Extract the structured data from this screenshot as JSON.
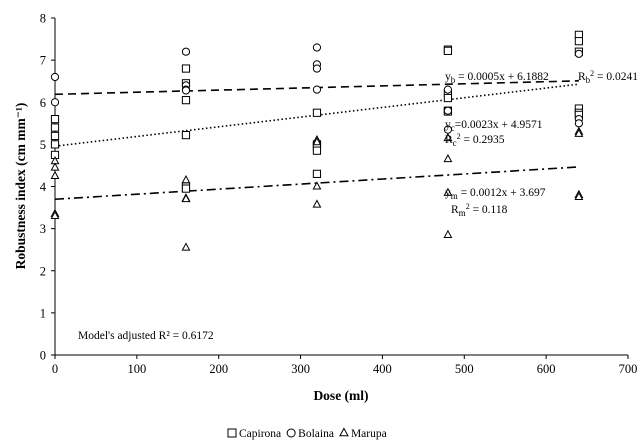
{
  "chart_data": {
    "type": "scatter",
    "xlabel": "Dose (ml)",
    "ylabel": "Robustness index (cm mm⁻¹)",
    "xlim": [
      0,
      700
    ],
    "ylim": [
      0,
      8
    ],
    "xticks": [
      0,
      100,
      200,
      300,
      400,
      500,
      600,
      700
    ],
    "yticks": [
      0,
      1,
      2,
      3,
      4,
      5,
      6,
      7,
      8
    ],
    "grid": false,
    "legend_position": "bottom-center",
    "series": [
      {
        "name": "Capirona",
        "marker": "square",
        "points": [
          [
            0,
            5.6
          ],
          [
            0,
            5.4
          ],
          [
            0,
            5.2
          ],
          [
            0,
            5.0
          ],
          [
            0,
            4.75
          ],
          [
            160,
            6.8
          ],
          [
            160,
            6.45
          ],
          [
            160,
            6.05
          ],
          [
            160,
            5.22
          ],
          [
            160,
            4.0
          ],
          [
            160,
            3.95
          ],
          [
            320,
            5.75
          ],
          [
            320,
            5.0
          ],
          [
            320,
            4.95
          ],
          [
            320,
            4.85
          ],
          [
            320,
            4.3
          ],
          [
            480,
            7.25
          ],
          [
            480,
            7.22
          ],
          [
            480,
            6.22
          ],
          [
            480,
            6.1
          ],
          [
            480,
            5.8
          ],
          [
            480,
            5.78
          ],
          [
            640,
            7.6
          ],
          [
            640,
            7.45
          ],
          [
            640,
            7.2
          ],
          [
            640,
            5.85
          ],
          [
            640,
            5.75
          ],
          [
            640,
            5.7
          ]
        ]
      },
      {
        "name": "Bolaina",
        "marker": "circle",
        "points": [
          [
            0,
            6.6
          ],
          [
            0,
            6.0
          ],
          [
            160,
            7.2
          ],
          [
            160,
            6.4
          ],
          [
            160,
            6.3
          ],
          [
            160,
            6.28
          ],
          [
            320,
            7.3
          ],
          [
            320,
            6.9
          ],
          [
            320,
            6.8
          ],
          [
            320,
            6.3
          ],
          [
            480,
            6.3
          ],
          [
            480,
            5.8
          ],
          [
            480,
            5.35
          ],
          [
            640,
            7.15
          ],
          [
            640,
            5.6
          ],
          [
            640,
            5.5
          ]
        ]
      },
      {
        "name": "Marupa",
        "marker": "triangle",
        "points": [
          [
            0,
            4.6
          ],
          [
            0,
            4.45
          ],
          [
            0,
            4.25
          ],
          [
            0,
            3.35
          ],
          [
            0,
            3.3
          ],
          [
            160,
            4.15
          ],
          [
            160,
            3.72
          ],
          [
            160,
            3.7
          ],
          [
            160,
            2.55
          ],
          [
            320,
            5.1
          ],
          [
            320,
            5.05
          ],
          [
            320,
            4.0
          ],
          [
            320,
            3.57
          ],
          [
            480,
            5.15
          ],
          [
            480,
            4.65
          ],
          [
            480,
            3.85
          ],
          [
            480,
            2.85
          ],
          [
            640,
            5.3
          ],
          [
            640,
            5.25
          ],
          [
            640,
            3.8
          ],
          [
            640,
            3.75
          ]
        ]
      }
    ],
    "trendlines": [
      {
        "series": "Bolaina",
        "style": "dashed",
        "slope": 0.0005,
        "intercept": 6.1882,
        "x_range": [
          0,
          640
        ]
      },
      {
        "series": "Capirona",
        "style": "dotted",
        "slope": 0.0023,
        "intercept": 4.9571,
        "x_range": [
          0,
          640
        ]
      },
      {
        "series": "Marupa",
        "style": "dash-dot",
        "slope": 0.0012,
        "intercept": 3.697,
        "x_range": [
          0,
          640
        ]
      }
    ],
    "annotations": {
      "eq_b": {
        "main": "y",
        "sub": "b",
        "rest": " = 0.0005x + 6.1882"
      },
      "r2_b": {
        "main": "R",
        "sub": "b",
        "rest": " = 0.0241"
      },
      "eq_c": {
        "main": "y",
        "sub": "c",
        "rest": "=0.0023x + 4.9571"
      },
      "r2_c": {
        "main": "R",
        "sub": "c",
        "rest": " = 0.2935"
      },
      "eq_m": {
        "main": "y",
        "sub": "m",
        "rest": " = 0.0012x + 3.697"
      },
      "r2_m": {
        "main": "R",
        "sub": "m",
        "rest": " = 0.118"
      },
      "model_note": "Model's adjusted R² = 0.6172"
    }
  }
}
